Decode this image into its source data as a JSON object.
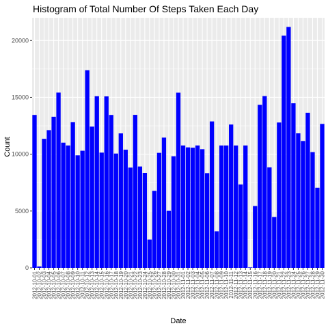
{
  "chart_data": {
    "type": "bar",
    "title": "Histogram of Total Number Of Steps Taken Each Day",
    "xlabel": "Date",
    "ylabel": "Count",
    "ylim": [
      0,
      22000
    ],
    "yticks": [
      0,
      5000,
      10000,
      15000,
      20000
    ],
    "ytick_labels": [
      "0",
      "5000",
      "10000",
      "15000",
      "20000"
    ],
    "bar_color": "#0000ff",
    "panel_background": "#ebebeb",
    "grid": true,
    "categories": [
      "2012-10-02",
      "2012-10-03",
      "2012-10-04",
      "2012-10-05",
      "2012-10-06",
      "2012-10-07",
      "2012-10-09",
      "2012-10-10",
      "2012-10-11",
      "2012-10-12",
      "2012-10-13",
      "2012-10-14",
      "2012-10-15",
      "2012-10-16",
      "2012-10-17",
      "2012-10-18",
      "2012-10-19",
      "2012-10-20",
      "2012-10-21",
      "2012-10-22",
      "2012-10-23",
      "2012-10-24",
      "2012-10-25",
      "2012-10-26",
      "2012-10-27",
      "2012-10-28",
      "2012-10-29",
      "2012-10-30",
      "2012-10-31",
      "2012-11-02",
      "2012-11-03",
      "2012-11-05",
      "2012-11-06",
      "2012-11-07",
      "2012-11-08",
      "2012-11-11",
      "2012-11-12",
      "2012-11-13",
      "2012-11-15",
      "2012-11-16",
      "2012-11-17",
      "2012-11-18",
      "2012-11-19",
      "2012-11-20",
      "2012-11-21",
      "2012-11-22",
      "2012-11-23",
      "2012-11-24",
      "2012-11-25",
      "2012-11-26",
      "2012-11-27",
      "2012-11-28",
      "2012-11-29"
    ],
    "values": [
      126,
      11352,
      12116,
      13294,
      15420,
      11015,
      12811,
      9900,
      10304,
      17382,
      12426,
      15098,
      10139,
      15084,
      13452,
      10056,
      11829,
      10395,
      8821,
      13460,
      8918,
      8355,
      2492,
      6778,
      10119,
      11458,
      5018,
      9819,
      15414,
      10600,
      10571,
      10439,
      8334,
      12883,
      3219,
      12608,
      10765,
      7336,
      41,
      5441,
      14339,
      15110,
      8841,
      4472,
      12787,
      20427,
      21194,
      14478,
      11834,
      11162,
      13646,
      10183,
      7047
    ],
    "tick_labels": [
      "2012-10-01",
      "2012-10-02",
      "2012-10-03",
      "2012-10-04",
      "2012-10-05",
      "2012-10-06",
      "2012-10-07",
      "2012-10-08",
      "2012-10-09",
      "2012-10-10",
      "2012-10-11",
      "2012-10-12",
      "2012-10-13",
      "2012-10-14",
      "2012-10-15",
      "2012-10-16",
      "2012-10-17",
      "2012-10-18",
      "2012-10-19",
      "2012-10-20",
      "2012-10-21",
      "2012-10-22",
      "2012-10-23",
      "2012-10-24",
      "2012-10-25",
      "2012-10-26",
      "2012-10-27",
      "2012-10-28",
      "2012-10-29",
      "2012-10-30",
      "2012-10-31",
      "2012-11-01",
      "2012-11-02",
      "2012-11-03",
      "2012-11-04",
      "2012-11-05",
      "2012-11-06",
      "2012-11-07",
      "2012-11-08",
      "2012-11-09",
      "2012-11-10",
      "2012-11-11",
      "2012-11-12",
      "2012-11-13",
      "2012-11-14",
      "2012-11-15",
      "2012-11-16",
      "2012-11-17",
      "2012-11-18",
      "2012-11-19",
      "2012-11-20",
      "2012-11-21",
      "2012-11-22",
      "2012-11-23",
      "2012-11-24",
      "2012-11-25",
      "2012-11-26",
      "2012-11-27",
      "2012-11-28",
      "2012-11-29",
      "2012-11-30"
    ],
    "day_values": [
      13453,
      126,
      11352,
      12116,
      13294,
      15420,
      11015,
      10766,
      12811,
      9900,
      10304,
      17382,
      12426,
      15098,
      10139,
      15084,
      13452,
      10056,
      11829,
      10395,
      8821,
      13460,
      8918,
      8355,
      2492,
      6778,
      10119,
      11458,
      5018,
      9819,
      15414,
      10766,
      10600,
      10571,
      10766,
      10439,
      8334,
      12883,
      3219,
      10766,
      10766,
      12608,
      10765,
      7336,
      10766,
      41,
      5441,
      14339,
      15110,
      8841,
      4472,
      12787,
      20427,
      21194,
      14478,
      11834,
      11162,
      13646,
      10183,
      7047,
      12662
    ]
  }
}
